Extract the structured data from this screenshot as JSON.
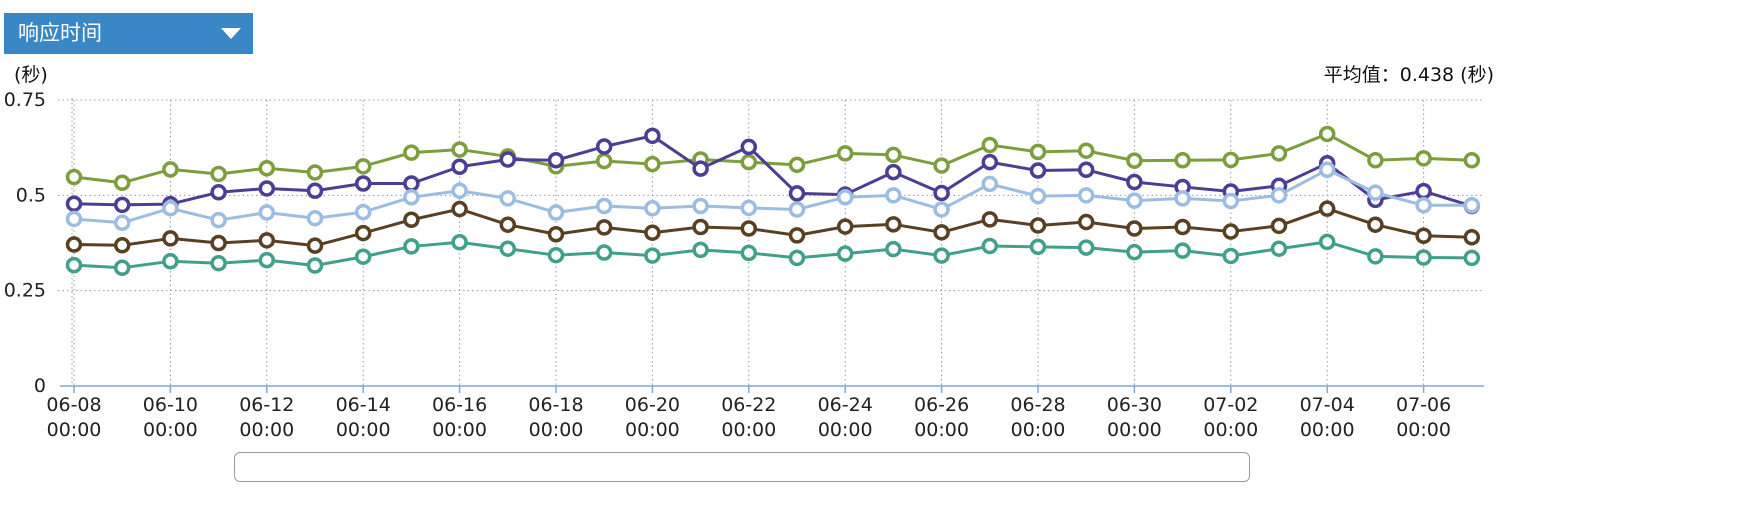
{
  "header": {
    "metric_select_value": "响应时间",
    "unit_label": "(秒)",
    "average_label": "平均值：0.438 (秒)"
  },
  "chart_data": {
    "type": "line",
    "categories": [
      "06-08 00:00",
      "06-09 00:00",
      "06-10 00:00",
      "06-11 00:00",
      "06-12 00:00",
      "06-13 00:00",
      "06-14 00:00",
      "06-15 00:00",
      "06-16 00:00",
      "06-17 00:00",
      "06-18 00:00",
      "06-19 00:00",
      "06-20 00:00",
      "06-21 00:00",
      "06-22 00:00",
      "06-23 00:00",
      "06-24 00:00",
      "06-25 00:00",
      "06-26 00:00",
      "06-27 00:00",
      "06-28 00:00",
      "06-29 00:00",
      "06-30 00:00",
      "07-01 00:00",
      "07-02 00:00",
      "07-03 00:00",
      "07-04 00:00",
      "07-05 00:00",
      "07-06 00:00",
      "07-07 00:00"
    ],
    "tick_labels": [
      {
        "index": 0,
        "line1": "06-08",
        "line2": "00:00"
      },
      {
        "index": 2,
        "line1": "06-10",
        "line2": "00:00"
      },
      {
        "index": 4,
        "line1": "06-12",
        "line2": "00:00"
      },
      {
        "index": 6,
        "line1": "06-14",
        "line2": "00:00"
      },
      {
        "index": 8,
        "line1": "06-16",
        "line2": "00:00"
      },
      {
        "index": 10,
        "line1": "06-18",
        "line2": "00:00"
      },
      {
        "index": 12,
        "line1": "06-20",
        "line2": "00:00"
      },
      {
        "index": 14,
        "line1": "06-22",
        "line2": "00:00"
      },
      {
        "index": 16,
        "line1": "06-24",
        "line2": "00:00"
      },
      {
        "index": 18,
        "line1": "06-26",
        "line2": "00:00"
      },
      {
        "index": 20,
        "line1": "06-28",
        "line2": "00:00"
      },
      {
        "index": 22,
        "line1": "06-30",
        "line2": "00:00"
      },
      {
        "index": 24,
        "line1": "07-02",
        "line2": "00:00"
      },
      {
        "index": 26,
        "line1": "07-04",
        "line2": "00:00"
      },
      {
        "index": 28,
        "line1": "07-06",
        "line2": "00:00"
      }
    ],
    "y_ticks": [
      {
        "value": 0,
        "label": "0"
      },
      {
        "value": 0.25,
        "label": "0.25"
      },
      {
        "value": 0.5,
        "label": "0.5"
      },
      {
        "value": 0.75,
        "label": "0.75"
      }
    ],
    "ylim": [
      0,
      0.75
    ],
    "grid": true,
    "grid_style": "dotted",
    "series": [
      {
        "color": "#7d9e3c",
        "values": [
          0.548,
          0.533,
          0.568,
          0.556,
          0.571,
          0.56,
          0.576,
          0.612,
          0.62,
          0.602,
          0.576,
          0.59,
          0.582,
          0.594,
          0.587,
          0.58,
          0.61,
          0.606,
          0.578,
          0.632,
          0.614,
          0.617,
          0.591,
          0.592,
          0.593,
          0.61,
          0.661,
          0.592,
          0.597,
          0.592
        ]
      },
      {
        "color": "#4b3e94",
        "values": [
          0.478,
          0.475,
          0.477,
          0.508,
          0.518,
          0.512,
          0.531,
          0.531,
          0.575,
          0.594,
          0.592,
          0.628,
          0.656,
          0.57,
          0.627,
          0.505,
          0.502,
          0.561,
          0.506,
          0.587,
          0.565,
          0.567,
          0.535,
          0.522,
          0.51,
          0.525,
          0.584,
          0.488,
          0.511,
          0.472
        ]
      },
      {
        "color": "#9cbde2",
        "values": [
          0.438,
          0.428,
          0.466,
          0.435,
          0.455,
          0.44,
          0.456,
          0.495,
          0.512,
          0.492,
          0.455,
          0.472,
          0.466,
          0.472,
          0.467,
          0.463,
          0.495,
          0.5,
          0.463,
          0.53,
          0.498,
          0.5,
          0.486,
          0.492,
          0.485,
          0.5,
          0.567,
          0.507,
          0.474,
          0.474
        ]
      },
      {
        "color": "#5a4023",
        "values": [
          0.371,
          0.369,
          0.387,
          0.375,
          0.382,
          0.368,
          0.401,
          0.436,
          0.464,
          0.423,
          0.398,
          0.416,
          0.402,
          0.417,
          0.413,
          0.395,
          0.418,
          0.424,
          0.403,
          0.437,
          0.421,
          0.43,
          0.413,
          0.417,
          0.405,
          0.42,
          0.465,
          0.423,
          0.394,
          0.39
        ]
      },
      {
        "color": "#41a08a",
        "values": [
          0.317,
          0.31,
          0.327,
          0.322,
          0.33,
          0.316,
          0.339,
          0.366,
          0.377,
          0.36,
          0.343,
          0.35,
          0.342,
          0.357,
          0.349,
          0.336,
          0.347,
          0.359,
          0.342,
          0.367,
          0.365,
          0.363,
          0.351,
          0.355,
          0.341,
          0.36,
          0.378,
          0.34,
          0.337,
          0.336
        ]
      }
    ]
  }
}
